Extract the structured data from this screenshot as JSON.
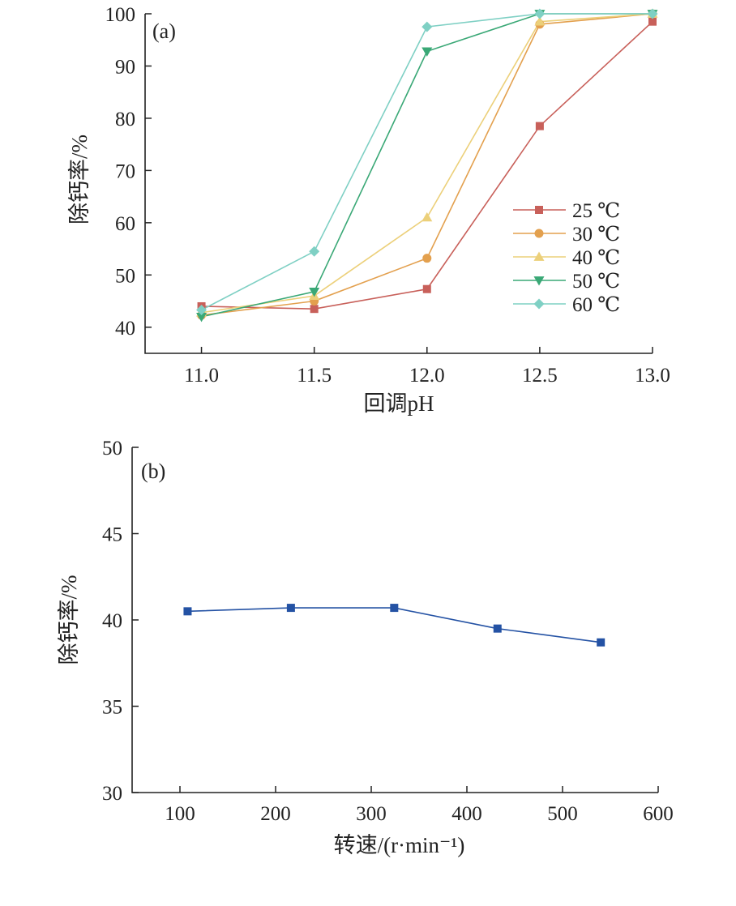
{
  "chart_data": [
    {
      "type": "line",
      "panel_label": "(a)",
      "xlabel": "回调pH",
      "ylabel": "除钙率/%",
      "x": [
        11.0,
        11.5,
        12.0,
        12.5,
        13.0
      ],
      "x_tick_labels": [
        "11.0",
        "11.5",
        "12.0",
        "12.5",
        "13.0"
      ],
      "xlim": [
        10.75,
        13.0
      ],
      "ylim": [
        35,
        100
      ],
      "y_ticks": [
        40,
        50,
        60,
        70,
        80,
        90,
        100
      ],
      "grid": false,
      "legend_position": "right",
      "series": [
        {
          "name": "25 ℃",
          "color": "#c8605a",
          "marker": "square",
          "values": [
            44.0,
            43.5,
            47.3,
            78.5,
            98.5
          ]
        },
        {
          "name": "30 ℃",
          "color": "#e3a04e",
          "marker": "circle",
          "values": [
            42.3,
            45.0,
            53.2,
            98.0,
            100.0
          ]
        },
        {
          "name": "40 ℃",
          "color": "#ecd07a",
          "marker": "triangle-up",
          "values": [
            42.8,
            46.0,
            61.0,
            98.5,
            100.0
          ]
        },
        {
          "name": "50 ℃",
          "color": "#3aa876",
          "marker": "triangle-down",
          "values": [
            42.0,
            46.8,
            92.8,
            100.0,
            100.0
          ]
        },
        {
          "name": "60 ℃",
          "color": "#7fd0c4",
          "marker": "diamond",
          "values": [
            43.3,
            54.5,
            97.5,
            100.0,
            100.0
          ]
        }
      ]
    },
    {
      "type": "line",
      "panel_label": "(b)",
      "xlabel": "转速/(r·min⁻¹)",
      "ylabel": "除钙率/%",
      "xlim": [
        50,
        600
      ],
      "ylim": [
        30,
        50
      ],
      "x_ticks": [
        100,
        200,
        300,
        400,
        500,
        600
      ],
      "y_ticks": [
        30,
        35,
        40,
        45,
        50
      ],
      "grid": false,
      "series": [
        {
          "color": "#2452a4",
          "marker": "square",
          "x": [
            108,
            216,
            324,
            432,
            540
          ],
          "values": [
            40.5,
            40.7,
            40.7,
            39.5,
            38.7
          ]
        }
      ]
    }
  ]
}
